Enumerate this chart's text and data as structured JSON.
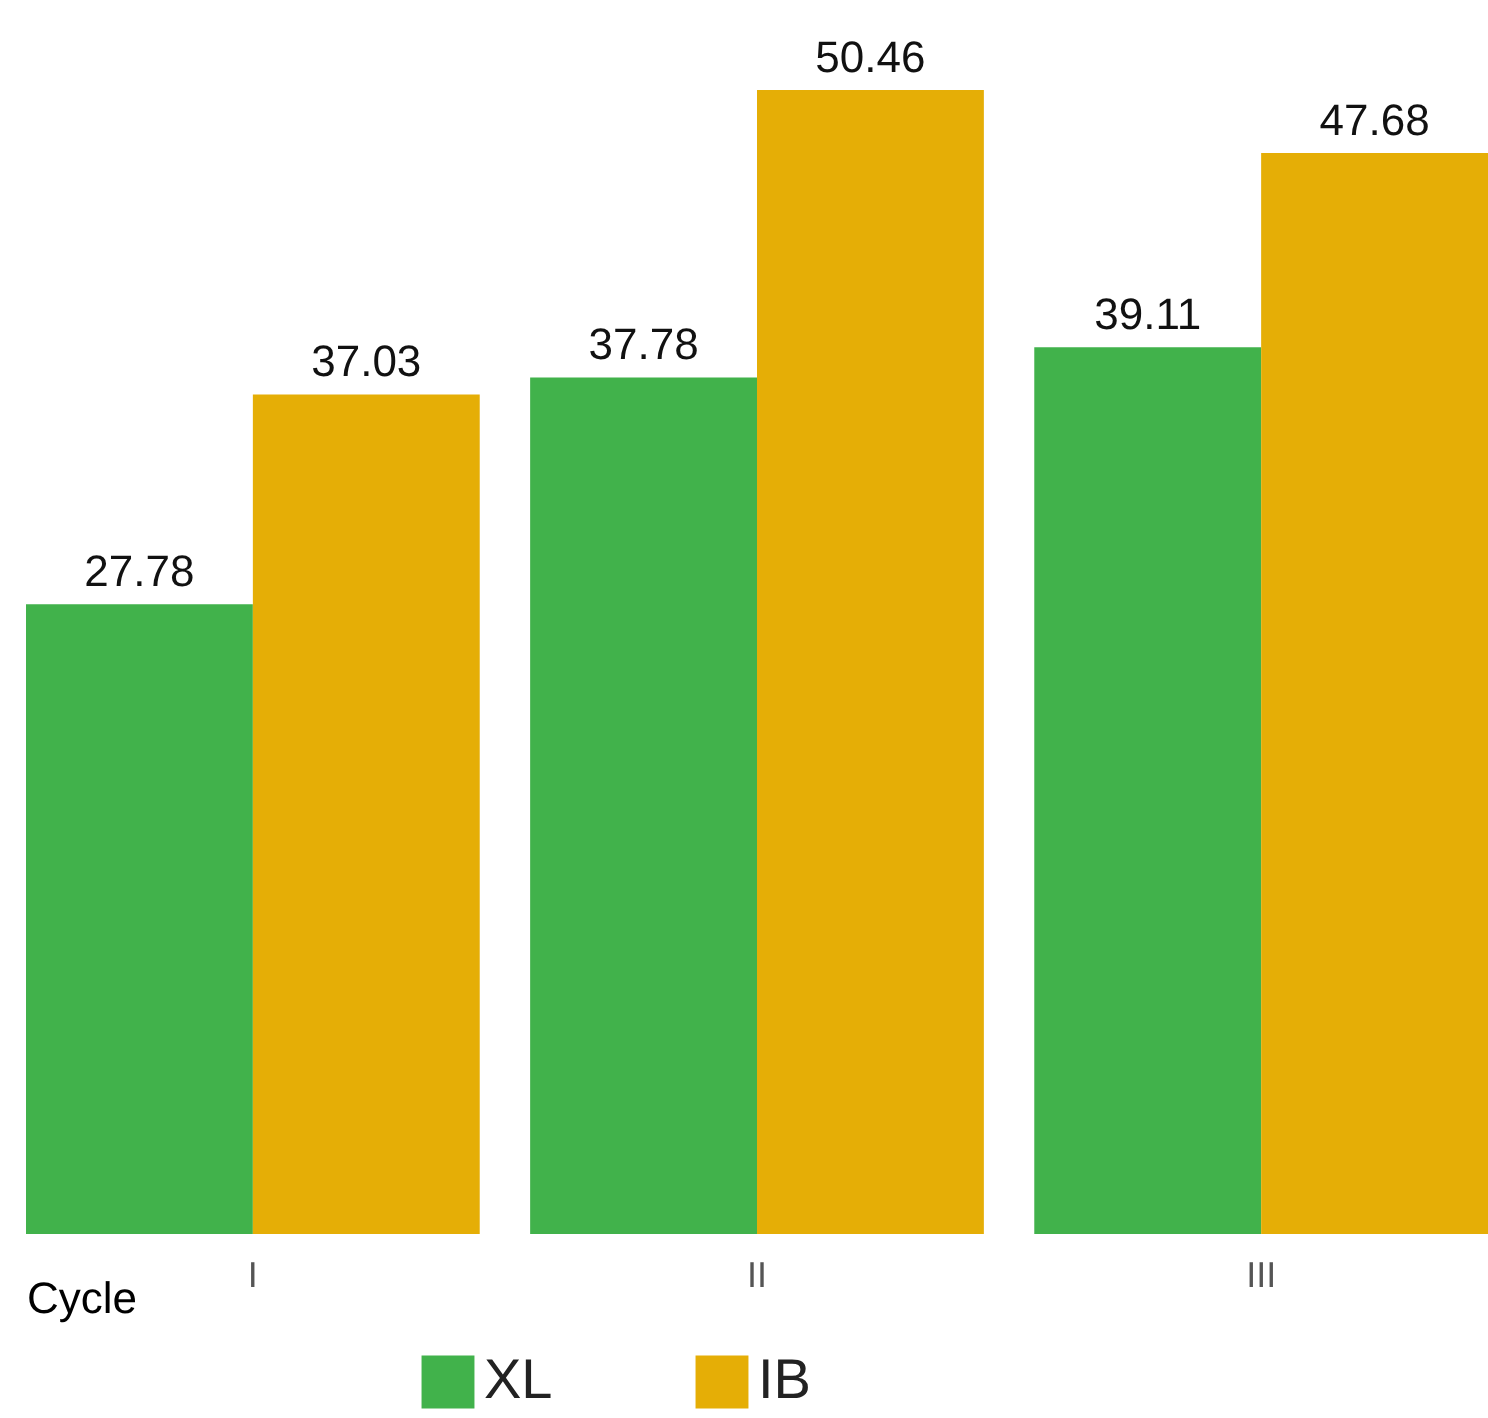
{
  "chart_data": {
    "type": "bar",
    "xlabel": "Cycle",
    "categories": [
      "I",
      "II",
      "III"
    ],
    "series": [
      {
        "name": "XL",
        "color": "#41b24b",
        "values": [
          27.78,
          37.78,
          39.11
        ]
      },
      {
        "name": "IB",
        "color": "#e5ae06",
        "values": [
          37.03,
          50.46,
          47.68
        ]
      }
    ],
    "data_labels": true,
    "legend": "bottom",
    "grid": false
  }
}
